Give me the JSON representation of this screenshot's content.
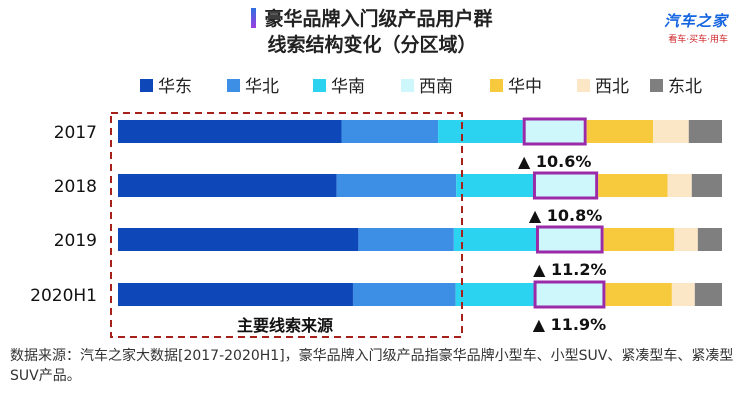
{
  "title": {
    "line1": "豪华品牌入门级产品用户群",
    "line2": "线索结构变化（分区域）"
  },
  "logo": {
    "main": "汽车之家",
    "sub": "看车·买车·用车"
  },
  "annotation": {
    "box_label": "主要线索来源"
  },
  "source_note": "数据来源：汽车之家大数据[2017-2020H1]，豪华品牌入门级产品指豪华品牌小型车、小型SUV、紧凑型车、紧凑型SUV产品。",
  "chart_data": {
    "type": "bar",
    "orientation": "horizontal",
    "stacked": "100%",
    "categories": [
      "2017",
      "2018",
      "2019",
      "2020H1"
    ],
    "series": [
      {
        "name": "华东",
        "color": "#0d47b8",
        "values": [
          37.0,
          36.2,
          39.8,
          38.9
        ]
      },
      {
        "name": "华北",
        "color": "#3d8fe6",
        "values": [
          16.0,
          19.8,
          15.8,
          17.0
        ]
      },
      {
        "name": "华南",
        "color": "#2bd3f0",
        "values": [
          14.0,
          12.7,
          13.6,
          12.9
        ]
      },
      {
        "name": "西南",
        "color": "#cdf7fb",
        "values": [
          10.6,
          10.8,
          11.2,
          11.9
        ]
      },
      {
        "name": "华中",
        "color": "#f7c93c",
        "values": [
          11.0,
          11.5,
          11.7,
          11.0
        ]
      },
      {
        "name": "西北",
        "color": "#fbe6c6",
        "values": [
          5.9,
          4.0,
          3.9,
          3.8
        ]
      },
      {
        "name": "东北",
        "color": "#7f7f7f",
        "values": [
          5.5,
          5.0,
          4.0,
          4.5
        ]
      }
    ],
    "highlight_series": "西南",
    "highlight_color": "#9b2aa8",
    "data_labels": [
      "▲ 10.6%",
      "▲ 10.8%",
      "▲ 11.2%",
      "▲ 11.9%"
    ],
    "legend_position": "top",
    "grid": false,
    "xlim": [
      0,
      100
    ]
  }
}
